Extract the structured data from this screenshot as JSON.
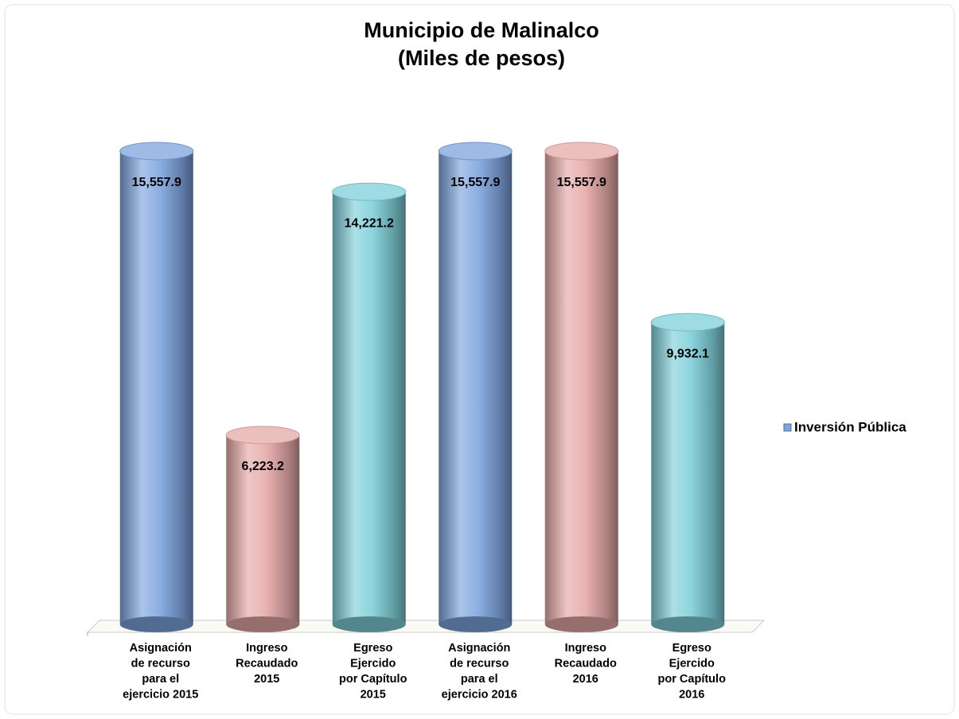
{
  "chart_data": {
    "type": "bar",
    "title": [
      "Municipio de Malinalco",
      "(Miles de pesos)"
    ],
    "categories": [
      [
        "Asignación",
        "de recurso",
        "para el",
        "ejercicio 2015"
      ],
      [
        "Ingreso",
        "Recaudado",
        "2015"
      ],
      [
        "Egreso",
        "Ejercido",
        "por Capítulo",
        "2015"
      ],
      [
        "Asignación",
        "de recurso",
        "para el",
        "ejercicio 2016"
      ],
      [
        "Ingreso",
        "Recaudado",
        "2016"
      ],
      [
        "Egreso",
        "Ejercido",
        "por Capítulo",
        "2016"
      ]
    ],
    "series": [
      {
        "name": "Inversión Pública",
        "colors": [
          "#7ea4de",
          "#e6a9a9",
          "#7fcfd9",
          "#7ea4de",
          "#e6a9a9",
          "#7fcfd9"
        ],
        "values": [
          15557.9,
          6223.2,
          14221.2,
          15557.9,
          15557.9,
          9932.1
        ],
        "value_labels": [
          "15,557.9",
          "6,223.2",
          "14,221.2",
          "15,557.9",
          "15,557.9",
          "9,932.1"
        ]
      }
    ],
    "legend": "right"
  }
}
